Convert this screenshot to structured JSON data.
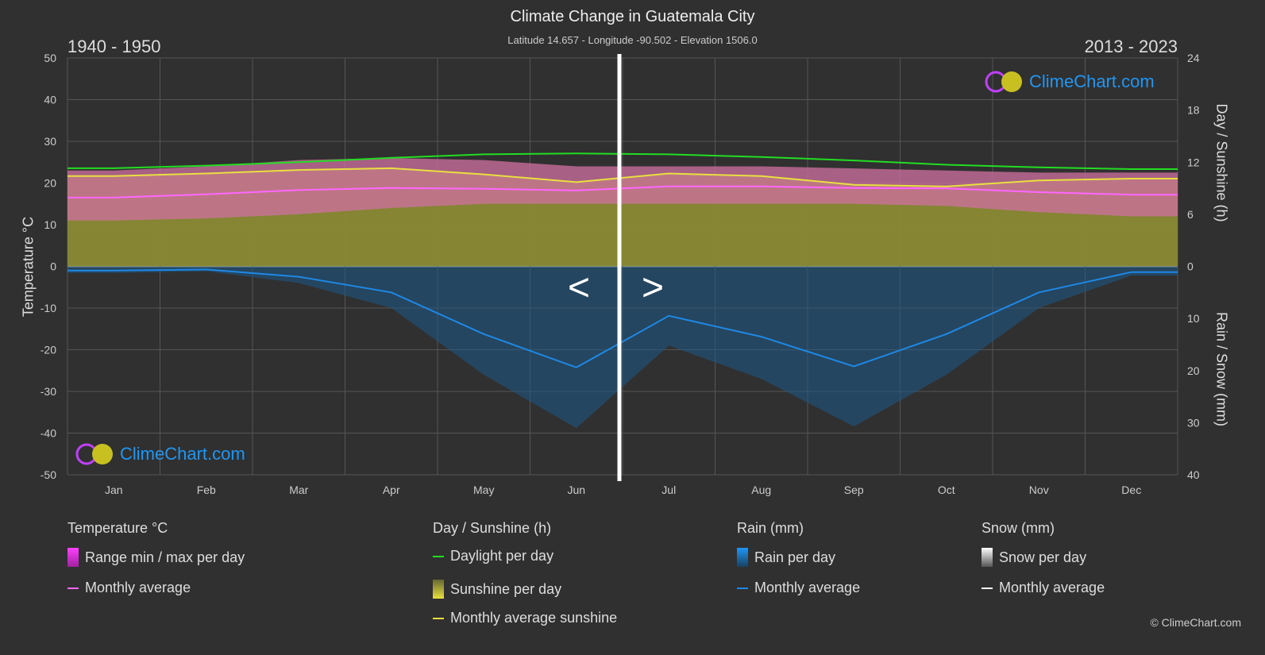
{
  "header": {
    "title": "Climate Change in Guatemala City",
    "subtitle": "Latitude 14.657 - Longitude -90.502 - Elevation 1506.0",
    "period_left": "1940 - 1950",
    "period_right": "2013 - 2023"
  },
  "logo": {
    "text": "ClimeChart.com"
  },
  "copyright": "© ClimeChart.com",
  "legend": {
    "temperature": {
      "title": "Temperature °C",
      "range": "Range min / max per day",
      "avg": "Monthly average"
    },
    "sun": {
      "title": "Day / Sunshine (h)",
      "daylight": "Daylight per day",
      "sunshine": "Sunshine per day",
      "avg": "Monthly average sunshine"
    },
    "rain": {
      "title": "Rain (mm)",
      "per_day": "Rain per day",
      "avg": "Monthly average"
    },
    "snow": {
      "title": "Snow (mm)",
      "per_day": "Snow per day",
      "avg": "Monthly average"
    }
  },
  "colors": {
    "daylight": "#22dd22",
    "sunshine": "#e8e040",
    "temp_avg": "#ff66ff",
    "temp_range": "#d070a0",
    "rain": "#1e88e5",
    "sun_fill": "#8a8a35",
    "snow": "#ffffff"
  },
  "chart_data": {
    "type": "area",
    "title": "Climate Change in Guatemala City",
    "ylabel_left": "Temperature °C",
    "ylabel_right_top": "Day / Sunshine (h)",
    "ylabel_right_bottom": "Rain / Snow (mm)",
    "ylim_left": [
      -50,
      50
    ],
    "ylim_sun": [
      0,
      24
    ],
    "ylim_rain": [
      0,
      40
    ],
    "yticks_left": [
      50,
      40,
      30,
      20,
      10,
      0,
      -10,
      -20,
      -30,
      -40,
      -50
    ],
    "yticks_sun": [
      24,
      18,
      12,
      6,
      0
    ],
    "yticks_rain": [
      0,
      10,
      20,
      30,
      40
    ],
    "categories": [
      "Jan",
      "Feb",
      "Mar",
      "Apr",
      "May",
      "Jun",
      "Jul",
      "Aug",
      "Sep",
      "Oct",
      "Nov",
      "Dec"
    ],
    "grid": true,
    "series": [
      {
        "name": "Daylight per day",
        "unit": "h",
        "values": [
          11.3,
          11.6,
          12.0,
          12.5,
          12.9,
          13.0,
          12.9,
          12.6,
          12.2,
          11.7,
          11.4,
          11.2
        ]
      },
      {
        "name": "Monthly average sunshine",
        "unit": "h",
        "values": [
          10.4,
          10.7,
          11.1,
          11.3,
          10.6,
          9.7,
          10.7,
          10.4,
          9.4,
          9.2,
          9.9,
          10.1
        ]
      },
      {
        "name": "Monthly average",
        "unit": "°C",
        "values": [
          16.5,
          17.3,
          18.3,
          18.8,
          18.6,
          18.2,
          19.2,
          19.2,
          18.8,
          18.7,
          17.8,
          17.2
        ]
      },
      {
        "name": "Range min / max per day",
        "unit": "°C",
        "min": [
          11,
          11.5,
          12.5,
          14,
          15,
          15,
          15,
          15,
          15,
          14.5,
          13,
          12
        ],
        "max": [
          23,
          24,
          25.5,
          26,
          25.5,
          24,
          24,
          24,
          23.5,
          23,
          22.5,
          22.5
        ]
      },
      {
        "name": "Rain monthly average",
        "unit": "mm",
        "values": [
          0.8,
          0.6,
          2.0,
          5.0,
          13.0,
          19.4,
          9.5,
          13.5,
          19.2,
          13.0,
          5.0,
          1.1
        ]
      }
    ]
  }
}
